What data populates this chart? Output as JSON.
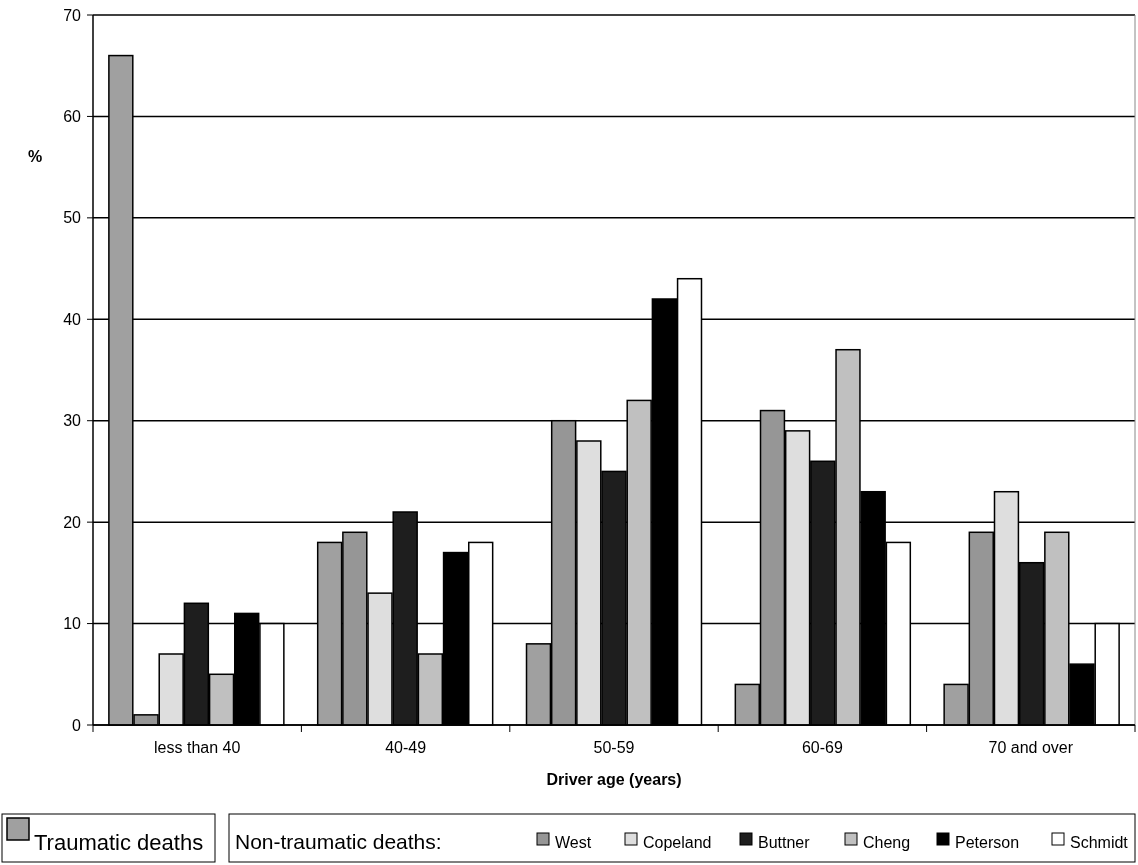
{
  "chart_data": {
    "type": "bar",
    "xlabel": "Driver age (years)",
    "ylabel": "%",
    "legend_title": "Non-traumatic deaths:",
    "categories": [
      "less than 40",
      "40-49",
      "50-59",
      "60-69",
      "70 and over"
    ],
    "series": [
      {
        "name": "Traumatic deaths",
        "color": "#a0a0a0",
        "values": [
          66,
          18,
          8,
          4,
          4
        ]
      },
      {
        "name": "West",
        "color": "#969696",
        "values": [
          1,
          19,
          30,
          31,
          19
        ]
      },
      {
        "name": "Copeland",
        "color": "#dedede",
        "values": [
          7,
          13,
          28,
          29,
          23
        ]
      },
      {
        "name": "Buttner",
        "color": "#1e1e1e",
        "values": [
          12,
          21,
          25,
          26,
          16
        ]
      },
      {
        "name": "Cheng",
        "color": "#c0c0c0",
        "values": [
          5,
          7,
          32,
          37,
          19
        ]
      },
      {
        "name": "Peterson",
        "color": "#000000",
        "values": [
          11,
          17,
          42,
          23,
          6
        ]
      },
      {
        "name": "Schmidt",
        "color": "#ffffff",
        "values": [
          10,
          18,
          44,
          18,
          10
        ]
      }
    ],
    "ylim": [
      0,
      70
    ],
    "yticks": [
      0,
      10,
      20,
      30,
      40,
      50,
      60,
      70
    ],
    "grid": "y",
    "legend": "bottom"
  }
}
